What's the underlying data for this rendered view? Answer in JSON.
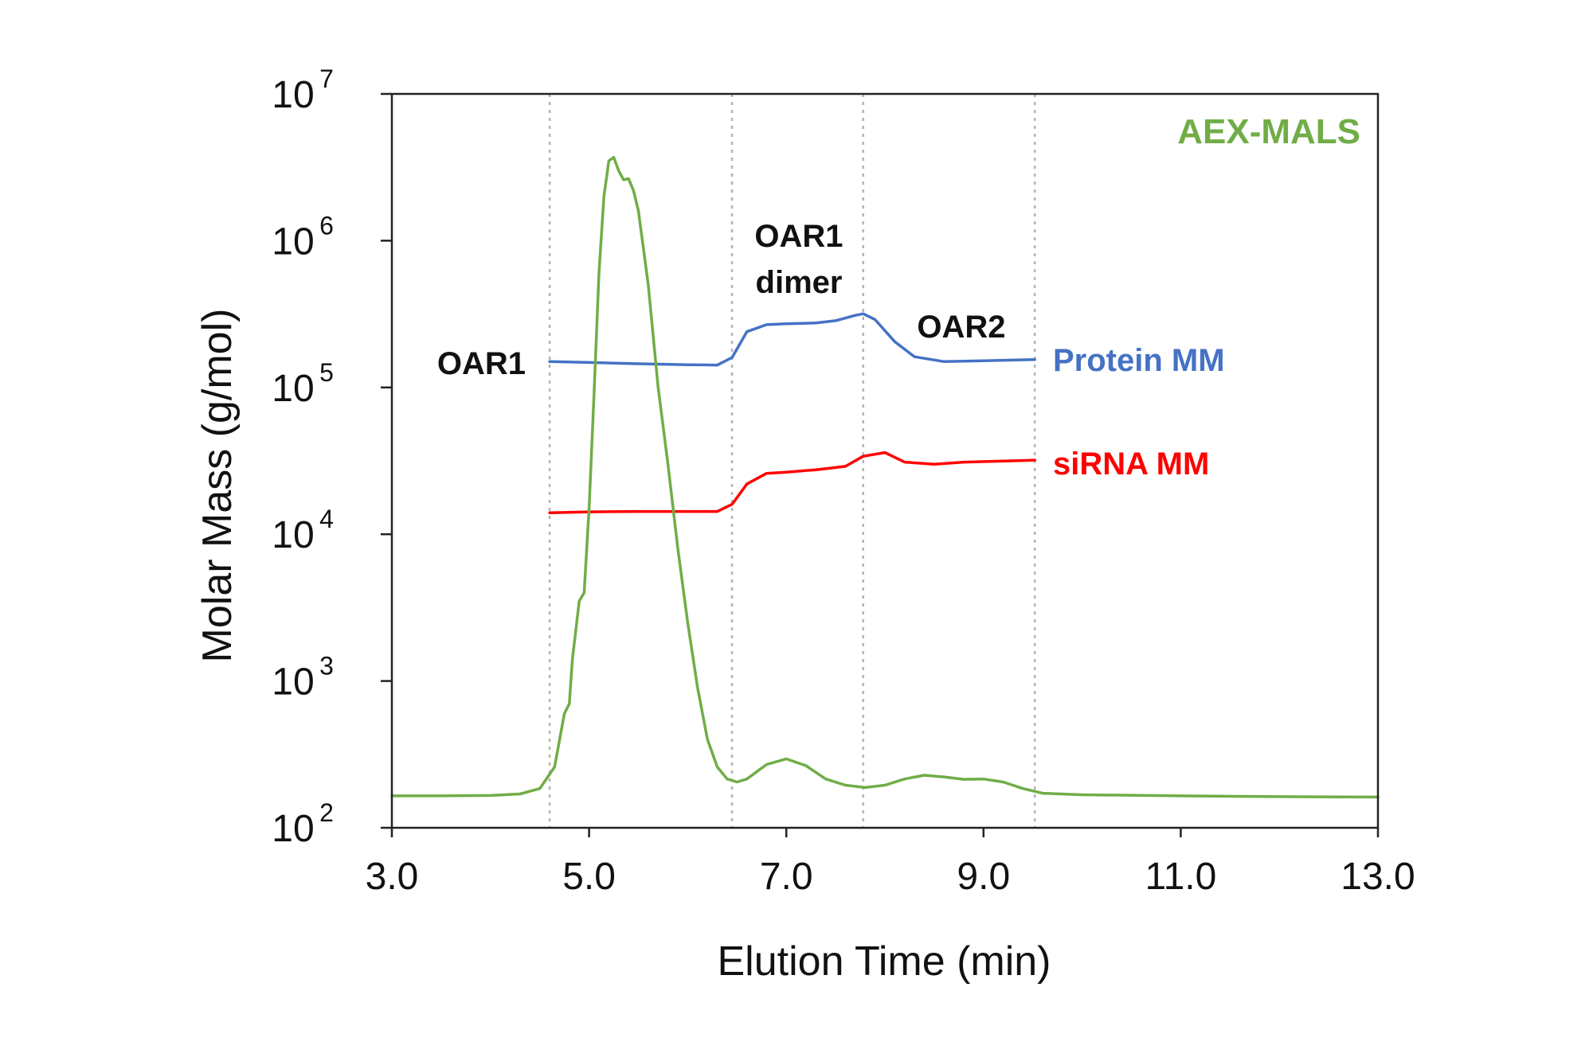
{
  "chart_data": {
    "type": "line",
    "title": "",
    "xlabel": "Elution Time (min)",
    "ylabel": "Molar Mass (g/mol)",
    "xlim": [
      3.0,
      13.0
    ],
    "ylim": [
      100,
      10000000
    ],
    "y_scale": "log",
    "x_ticks": [
      "3.0",
      "5.0",
      "7.0",
      "9.0",
      "11.0",
      "13.0"
    ],
    "x_tick_values": [
      3,
      5,
      7,
      9,
      11,
      13
    ],
    "y_ticks": [
      {
        "base": "10",
        "exp": "2",
        "value": 100
      },
      {
        "base": "10",
        "exp": "3",
        "value": 1000
      },
      {
        "base": "10",
        "exp": "4",
        "value": 10000
      },
      {
        "base": "10",
        "exp": "5",
        "value": 100000
      },
      {
        "base": "10",
        "exp": "6",
        "value": 1000000
      },
      {
        "base": "10",
        "exp": "7",
        "value": 10000000
      }
    ],
    "grid": false,
    "dividers_x": [
      4.6,
      6.45,
      7.78,
      9.52
    ],
    "annotations": {
      "panel": "AEX-MALS",
      "oar1": "OAR1",
      "oar1_dimer_line1": "OAR1",
      "oar1_dimer_line2": "dimer",
      "oar2": "OAR2",
      "protein_label": "Protein MM",
      "sirna_label": "siRNA MM"
    },
    "series": [
      {
        "name": "Protein MM",
        "color": "#4472C4",
        "x": [
          4.6,
          5.0,
          5.5,
          6.0,
          6.3,
          6.45,
          6.6,
          6.8,
          7.0,
          7.3,
          7.5,
          7.7,
          7.78,
          7.9,
          8.1,
          8.3,
          8.6,
          9.0,
          9.52
        ],
        "y": [
          150000,
          148000,
          145000,
          143000,
          142000,
          160000,
          240000,
          268000,
          272000,
          275000,
          285000,
          310000,
          318000,
          290000,
          205000,
          162000,
          150000,
          152000,
          155000
        ]
      },
      {
        "name": "siRNA MM",
        "color": "#FF0000",
        "x": [
          4.6,
          5.0,
          5.5,
          6.0,
          6.3,
          6.45,
          6.6,
          6.8,
          7.0,
          7.3,
          7.6,
          7.78,
          8.0,
          8.2,
          8.5,
          8.8,
          9.2,
          9.52
        ],
        "y": [
          14000,
          14200,
          14300,
          14300,
          14300,
          16000,
          22000,
          26000,
          26500,
          27500,
          29000,
          34000,
          36000,
          31000,
          30000,
          31000,
          31500,
          32000
        ]
      },
      {
        "name": "",
        "color": "#70AD47",
        "x": [
          3.0,
          3.5,
          4.0,
          4.3,
          4.5,
          4.65,
          4.75,
          4.8,
          4.83,
          4.9,
          4.95,
          5.0,
          5.05,
          5.1,
          5.15,
          5.2,
          5.25,
          5.3,
          5.35,
          5.4,
          5.45,
          5.5,
          5.6,
          5.7,
          5.8,
          5.9,
          6.0,
          6.1,
          6.2,
          6.3,
          6.4,
          6.5,
          6.6,
          6.8,
          7.0,
          7.2,
          7.4,
          7.6,
          7.8,
          8.0,
          8.2,
          8.4,
          8.6,
          8.8,
          9.0,
          9.2,
          9.4,
          9.6,
          10.0,
          11.0,
          12.0,
          13.0
        ],
        "y": [
          165,
          165,
          166,
          170,
          185,
          260,
          600,
          700,
          1400,
          3500,
          4000,
          15000,
          90000,
          600000,
          2000000,
          3500000,
          3700000,
          3000000,
          2600000,
          2650000,
          2200000,
          1600000,
          500000,
          100000,
          30000,
          8000,
          2500,
          900,
          400,
          260,
          215,
          205,
          215,
          270,
          295,
          265,
          215,
          195,
          188,
          195,
          215,
          228,
          222,
          214,
          215,
          205,
          185,
          172,
          168,
          165,
          163,
          162
        ]
      }
    ]
  }
}
